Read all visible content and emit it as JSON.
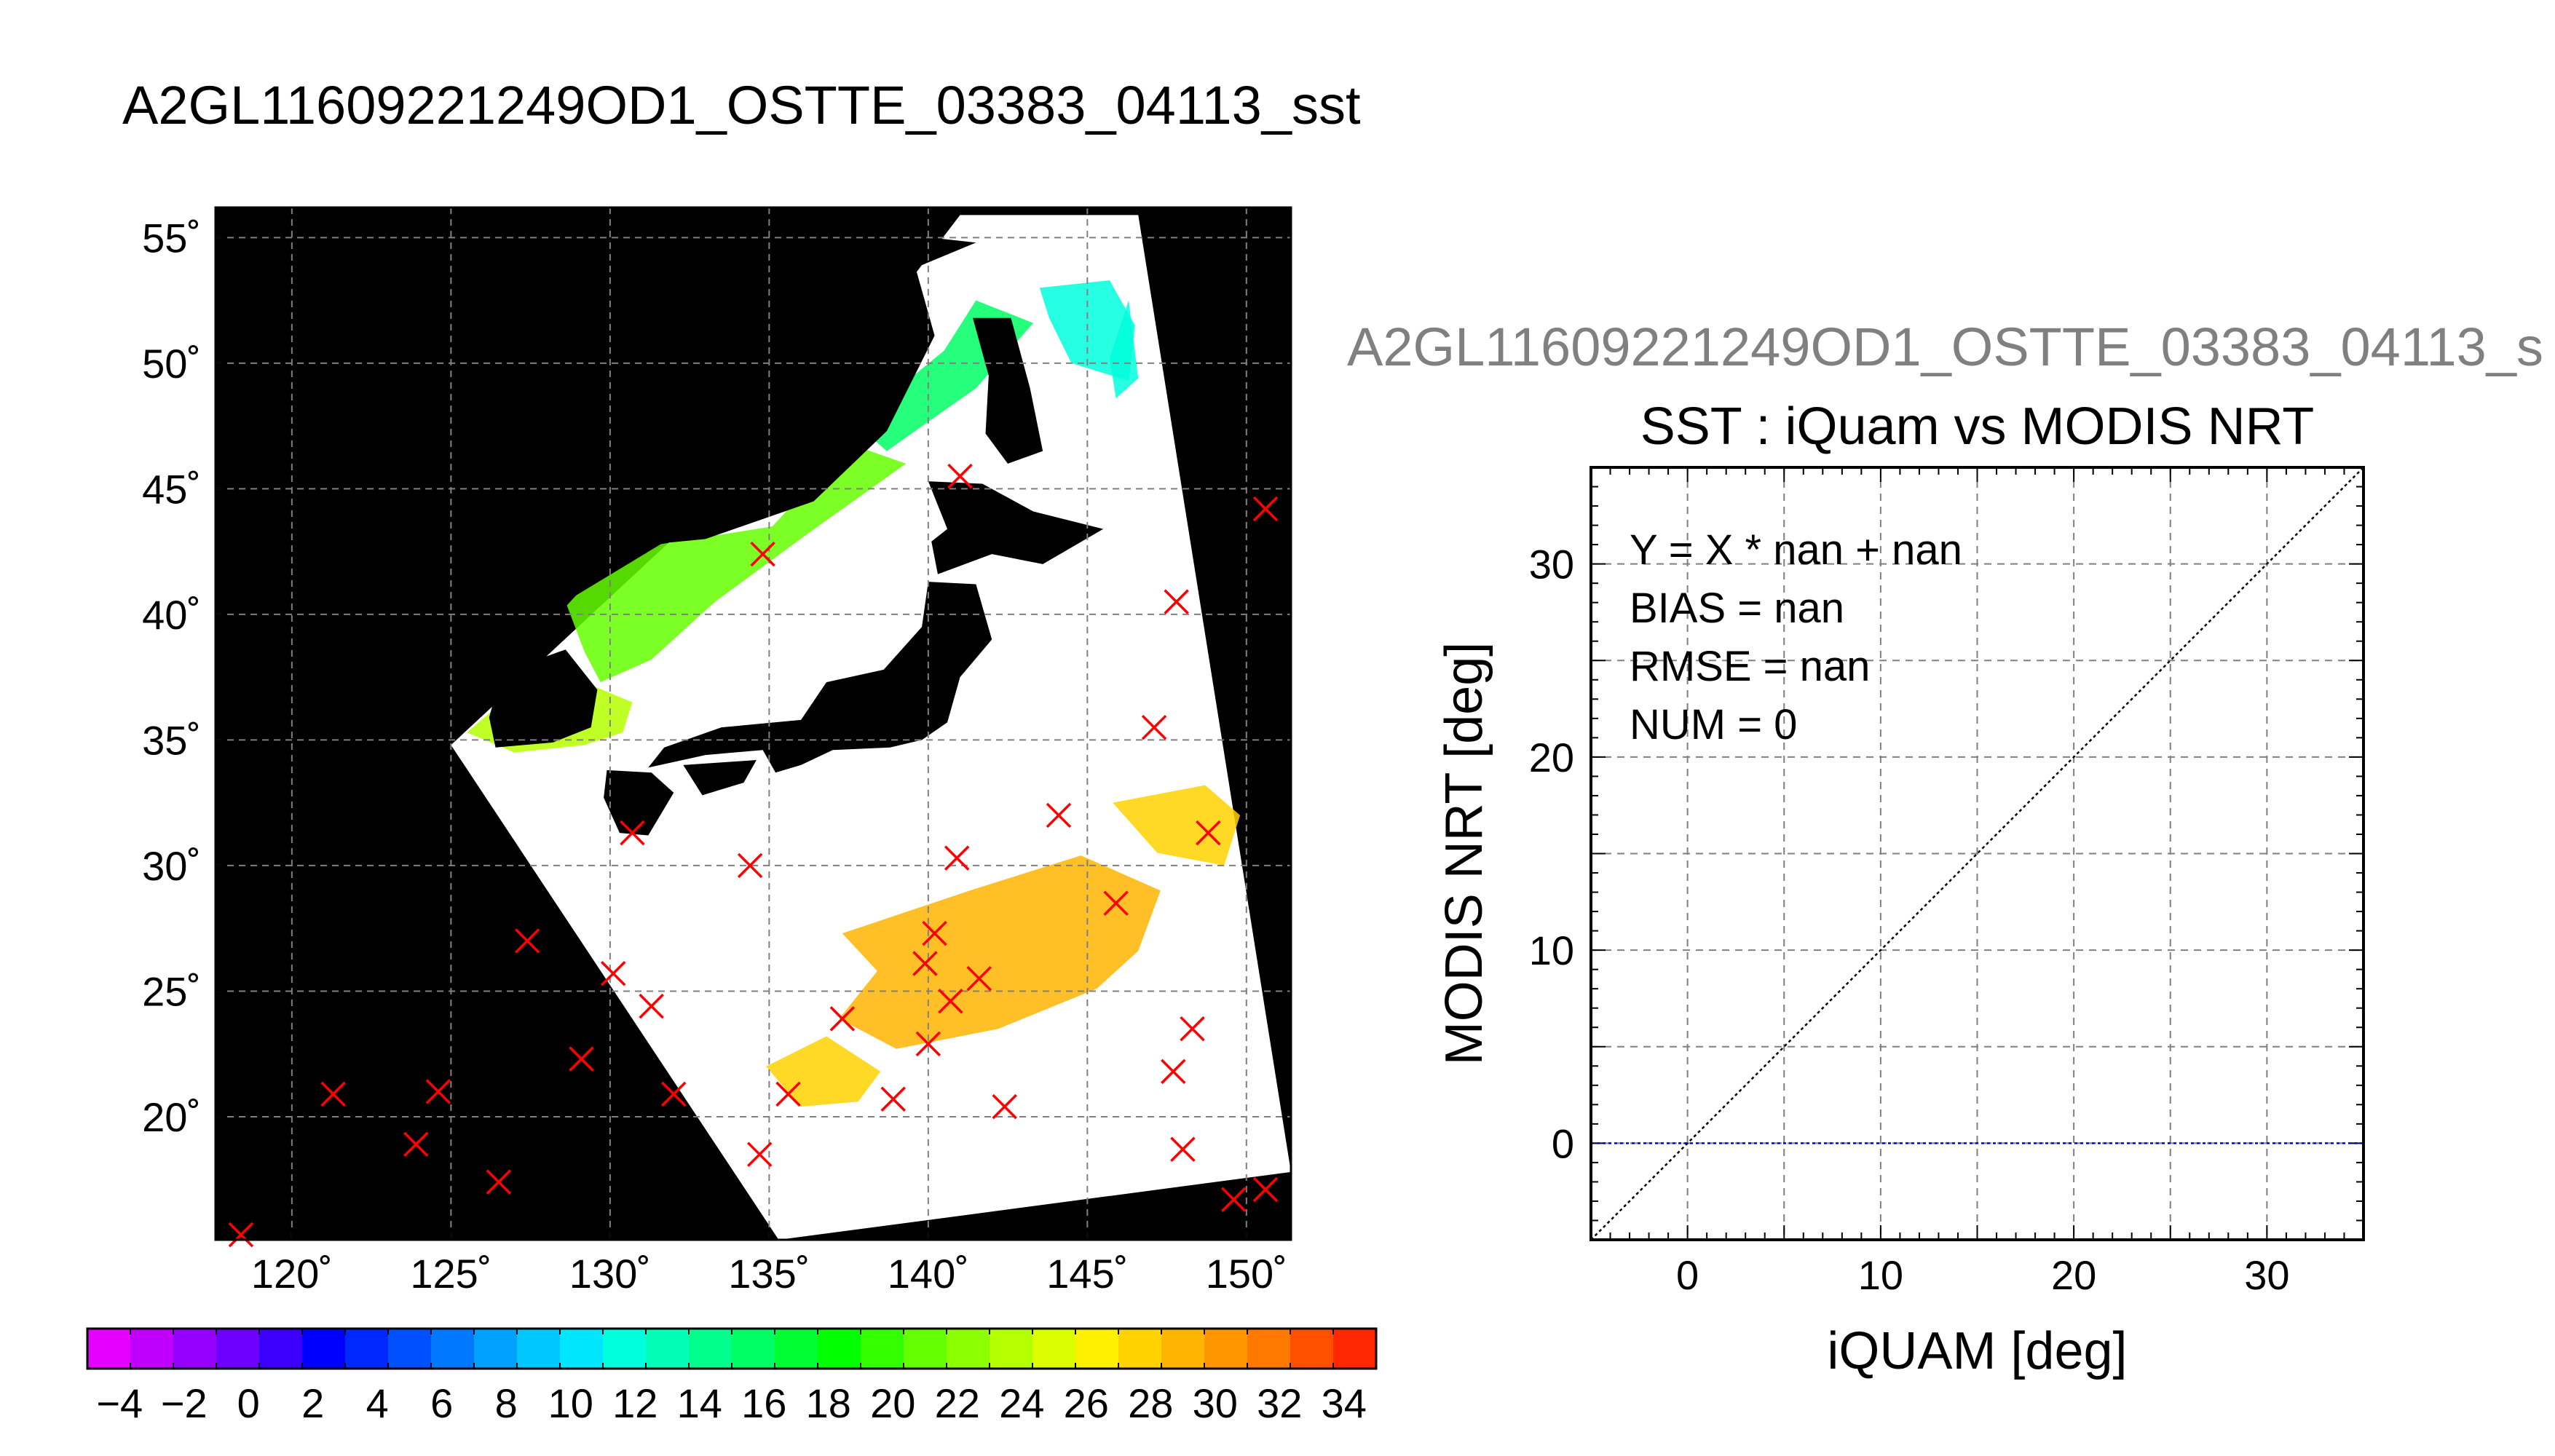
{
  "main_title": "A2GL11609221249OD1_OSTTE_03383_04113_sst",
  "scatter_file_title": "A2GL11609221249OD1_OSTTE_03383_04113_s",
  "colors": {
    "background": "#ffffff",
    "map_nodata": "#000000",
    "swath_fill": "#ffffff",
    "marker": "#ff0000",
    "grid": "#808080",
    "bias_line": "#0000cc",
    "one_to_one": "#000000"
  },
  "chart_data": [
    {
      "type": "scatter",
      "name": "sst-map",
      "x_ticks": [
        120,
        125,
        130,
        135,
        140,
        145,
        150
      ],
      "x_tick_labels": [
        "120˚",
        "125˚",
        "130˚",
        "135˚",
        "140˚",
        "145˚",
        "150˚"
      ],
      "y_ticks": [
        20,
        25,
        30,
        35,
        40,
        45,
        50,
        55
      ],
      "y_tick_labels": [
        "20˚",
        "25˚",
        "30˚",
        "35˚",
        "40˚",
        "45˚",
        "50˚",
        "55˚"
      ],
      "xlim": [
        117.6,
        151.4
      ],
      "ylim": [
        15.1,
        56.2
      ],
      "grid": true,
      "swath_corners_lonlat": [
        [
          125.0,
          34.8
        ],
        [
          136.3,
          48.1
        ],
        [
          141.0,
          55.9
        ],
        [
          146.6,
          55.9
        ],
        [
          151.4,
          17.8
        ],
        [
          135.3,
          15.1
        ]
      ],
      "observation_markers": [
        [
          141.0,
          45.5
        ],
        [
          150.6,
          44.2
        ],
        [
          134.8,
          42.4
        ],
        [
          147.8,
          40.5
        ],
        [
          147.1,
          35.5
        ],
        [
          130.7,
          31.3
        ],
        [
          134.4,
          30.0
        ],
        [
          140.9,
          30.3
        ],
        [
          144.1,
          32.0
        ],
        [
          148.8,
          31.3
        ],
        [
          127.4,
          27.0
        ],
        [
          140.2,
          27.3
        ],
        [
          145.9,
          28.5
        ],
        [
          139.9,
          26.1
        ],
        [
          130.1,
          25.7
        ],
        [
          141.6,
          25.5
        ],
        [
          140.7,
          24.6
        ],
        [
          131.3,
          24.4
        ],
        [
          137.3,
          23.9
        ],
        [
          148.3,
          23.5
        ],
        [
          140.0,
          22.9
        ],
        [
          129.1,
          22.3
        ],
        [
          147.7,
          21.8
        ],
        [
          121.3,
          20.9
        ],
        [
          124.6,
          21.0
        ],
        [
          132.0,
          20.9
        ],
        [
          135.6,
          20.9
        ],
        [
          138.9,
          20.7
        ],
        [
          142.4,
          20.4
        ],
        [
          123.9,
          18.9
        ],
        [
          148.0,
          18.7
        ],
        [
          134.7,
          18.5
        ],
        [
          126.5,
          17.4
        ],
        [
          149.6,
          16.7
        ],
        [
          150.6,
          17.1
        ],
        [
          118.4,
          15.3
        ]
      ],
      "sst_field_regions": [
        {
          "region": "sea-of-okhotsk-west",
          "value": 15,
          "polygon": [
            [
              137.7,
              47.6
            ],
            [
              140.5,
              50.5
            ],
            [
              141.5,
              52.5
            ],
            [
              143.3,
              51.6
            ],
            [
              141.5,
              49.0
            ],
            [
              139.7,
              47.4
            ],
            [
              138.7,
              46.5
            ]
          ]
        },
        {
          "region": "sea-of-okhotsk-east",
          "value": 11,
          "polygon": [
            [
              143.5,
              53.0
            ],
            [
              145.7,
              53.3
            ],
            [
              146.5,
              51.5
            ],
            [
              146.3,
              49.3
            ],
            [
              144.5,
              50.0
            ],
            [
              143.8,
              51.8
            ]
          ]
        },
        {
          "region": "sea-of-okhotsk-far-east",
          "value": 12,
          "polygon": [
            [
              146.3,
              52.5
            ],
            [
              146.6,
              49.4
            ],
            [
              145.9,
              48.6
            ],
            [
              145.7,
              50.2
            ]
          ]
        },
        {
          "region": "sea-of-japan",
          "value": 21,
          "polygon": [
            [
              128.6,
              40.5
            ],
            [
              131.6,
              42.8
            ],
            [
              135.1,
              43.5
            ],
            [
              137.5,
              46.8
            ],
            [
              139.3,
              46.0
            ],
            [
              136.2,
              43.2
            ],
            [
              133.3,
              40.5
            ],
            [
              131.3,
              38.2
            ],
            [
              129.7,
              37.3
            ],
            [
              129.2,
              38.5
            ]
          ]
        },
        {
          "region": "korea-strait",
          "value": 24,
          "polygon": [
            [
              125.5,
              35.3
            ],
            [
              127.9,
              37.9
            ],
            [
              128.8,
              37.5
            ],
            [
              130.7,
              36.5
            ],
            [
              130.4,
              35.3
            ],
            [
              129.2,
              34.8
            ],
            [
              127.0,
              34.5
            ]
          ]
        },
        {
          "region": "pacific-south",
          "value": 29,
          "polygon": [
            [
              137.3,
              27.3
            ],
            [
              141.3,
              29.0
            ],
            [
              144.8,
              30.4
            ],
            [
              147.3,
              29.0
            ],
            [
              146.6,
              26.6
            ],
            [
              145.3,
              25.1
            ],
            [
              142.2,
              23.5
            ],
            [
              139.0,
              22.7
            ],
            [
              137.2,
              23.9
            ],
            [
              138.4,
              25.8
            ]
          ]
        },
        {
          "region": "pacific-southwest",
          "value": 27,
          "polygon": [
            [
              134.9,
              22.0
            ],
            [
              136.8,
              23.2
            ],
            [
              138.5,
              21.8
            ],
            [
              137.8,
              20.6
            ],
            [
              136.0,
              20.4
            ]
          ]
        },
        {
          "region": "pacific-east",
          "value": 28,
          "polygon": [
            [
              145.8,
              32.5
            ],
            [
              148.7,
              33.2
            ],
            [
              149.8,
              32.0
            ],
            [
              149.3,
              30.0
            ],
            [
              147.2,
              30.5
            ]
          ]
        }
      ]
    },
    {
      "type": "heatmap",
      "name": "sst-colorbar",
      "tick_labels": [
        "−4",
        "−2",
        "0",
        "2",
        "4",
        "6",
        "8",
        "10",
        "12",
        "14",
        "16",
        "18",
        "20",
        "22",
        "24",
        "26",
        "28",
        "30",
        "32",
        "34"
      ],
      "range": [
        -5,
        35
      ],
      "colors": [
        "#e600ff",
        "#c000ff",
        "#9600ff",
        "#6e00ff",
        "#3c00ff",
        "#0000ff",
        "#0028ff",
        "#0050ff",
        "#0078ff",
        "#00a0ff",
        "#00c8ff",
        "#00e6ff",
        "#00ffdc",
        "#00ffb4",
        "#00ff8c",
        "#00ff64",
        "#00ff32",
        "#00ff00",
        "#32ff00",
        "#64ff00",
        "#8cff00",
        "#b4ff00",
        "#dcff00",
        "#fff000",
        "#ffd200",
        "#ffb400",
        "#ff9600",
        "#ff7800",
        "#ff5000",
        "#ff2800"
      ]
    },
    {
      "type": "scatter",
      "name": "sst-comparison",
      "title": "SST : iQuam vs MODIS NRT",
      "xlabel": "iQUAM [deg]",
      "ylabel": "MODIS NRT [deg]",
      "xlim": [
        -5,
        35
      ],
      "ylim": [
        -5,
        35
      ],
      "x_ticks": [
        0,
        10,
        20,
        30
      ],
      "y_ticks": [
        0,
        10,
        20,
        30
      ],
      "grid": true,
      "grid_step": 5,
      "minor_step": 1,
      "stats": [
        "Y = X * nan + nan",
        "BIAS = nan",
        "RMSE = nan",
        "NUM = 0"
      ],
      "series": [
        {
          "style": "dotted",
          "color": "#000000",
          "x": [
            -5,
            35
          ],
          "y": [
            -5,
            35
          ]
        },
        {
          "style": "dotted",
          "color": "#0000cc",
          "x": [
            -5,
            35
          ],
          "y": [
            0,
            0
          ]
        }
      ],
      "points": []
    }
  ]
}
